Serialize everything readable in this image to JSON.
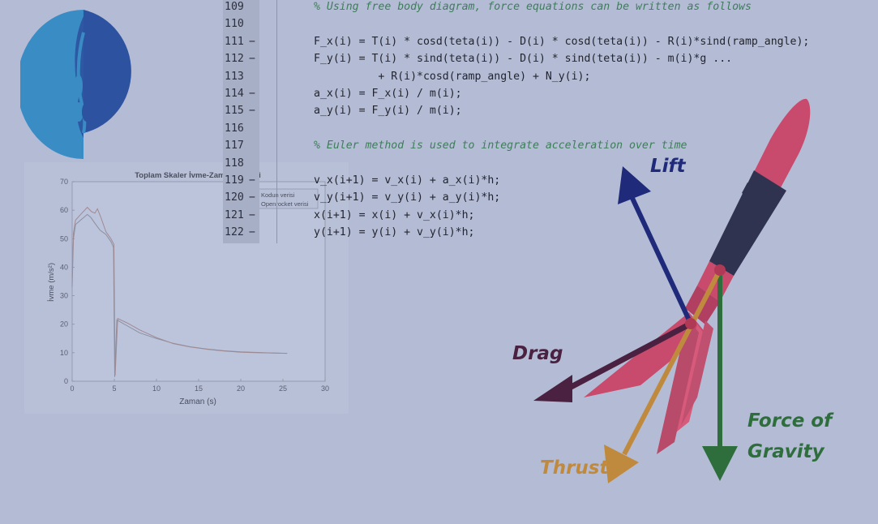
{
  "code": {
    "lines": [
      {
        "num": "109",
        "dash": "",
        "text": "",
        "comment": "% Using free body diagram, force equations can be written as follows"
      },
      {
        "num": "110",
        "dash": "",
        "text": "",
        "comment": ""
      },
      {
        "num": "111",
        "dash": "−",
        "text": "F_x(i) = T(i) * cosd(teta(i)) - D(i) * cosd(teta(i)) - R(i)*sind(ramp_angle);",
        "comment": ""
      },
      {
        "num": "112",
        "dash": "−",
        "text": "F_y(i) = T(i) * sind(teta(i)) - D(i) * sind(teta(i)) - m(i)*g ...",
        "comment": ""
      },
      {
        "num": "113",
        "dash": "",
        "text": "          + R(i)*cosd(ramp_angle) + N_y(i);",
        "comment": ""
      },
      {
        "num": "114",
        "dash": "−",
        "text": "a_x(i) = F_x(i) / m(i);",
        "comment": ""
      },
      {
        "num": "115",
        "dash": "−",
        "text": "a_y(i) = F_y(i) / m(i);",
        "comment": ""
      },
      {
        "num": "116",
        "dash": "",
        "text": "",
        "comment": ""
      },
      {
        "num": "117",
        "dash": "",
        "text": "",
        "comment": "% Euler method is used to integrate acceleration over time"
      },
      {
        "num": "118",
        "dash": "",
        "text": "",
        "comment": ""
      },
      {
        "num": "119",
        "dash": "−",
        "text": "v_x(i+1) = v_x(i) + a_x(i)*h;",
        "comment": ""
      },
      {
        "num": "120",
        "dash": "−",
        "text": "v_y(i+1) = v_y(i) + a_y(i)*h;",
        "comment": ""
      },
      {
        "num": "121",
        "dash": "−",
        "text": "x(i+1) = x(i) + v_x(i)*h;",
        "comment": ""
      },
      {
        "num": "122",
        "dash": "−",
        "text": "y(i+1) = y(i) + v_y(i)*h;",
        "comment": ""
      }
    ]
  },
  "diagram": {
    "labels": {
      "lift": "Lift",
      "drag": "Drag",
      "thrust": "Thrust",
      "gravity_line1": "Force of",
      "gravity_line2": "Gravity"
    },
    "colors": {
      "lift": "#1f2a7a",
      "drag": "#4a2140",
      "thrust": "#c08a3e",
      "gravity": "#2e6e3c",
      "rocket_body": "#c84a6c",
      "rocket_dark": "#2f3350"
    }
  },
  "chart_data": {
    "type": "line",
    "title": "Toplam Skaler İvme-Zaman Grafiği",
    "xlabel": "Zaman (s)",
    "ylabel": "İvme (m/s²)",
    "xlim": [
      0,
      30
    ],
    "ylim": [
      0,
      70
    ],
    "xticks": [
      0,
      5,
      10,
      15,
      20,
      25,
      30
    ],
    "yticks": [
      0,
      10,
      20,
      30,
      40,
      50,
      60,
      70
    ],
    "grid": false,
    "legend_position": "top-right",
    "series": [
      {
        "name": "Kodun verisi",
        "x": [
          0,
          0.15,
          0.4,
          1.0,
          1.8,
          2.2,
          2.8,
          3.3,
          4.0,
          4.6,
          4.9,
          5.05,
          5.3,
          6.5,
          8,
          10,
          12,
          14,
          16,
          18,
          20,
          22,
          24,
          25.5
        ],
        "y": [
          33,
          50,
          55,
          56.5,
          58.5,
          57.5,
          55,
          53,
          51.5,
          49,
          47,
          1.5,
          21.5,
          19.5,
          17,
          15,
          13.3,
          12.1,
          11.3,
          10.7,
          10.3,
          10.1,
          9.9,
          9.8
        ]
      },
      {
        "name": "Openrocket verisi",
        "x": [
          0,
          0.15,
          0.4,
          1.0,
          1.8,
          2.3,
          2.7,
          3.0,
          3.4,
          4.0,
          4.6,
          4.95,
          5.1,
          5.4,
          6.5,
          8,
          10,
          12,
          14,
          16,
          18,
          20,
          22,
          24,
          25.5
        ],
        "y": [
          36,
          52,
          56.5,
          58.5,
          61,
          59.5,
          59,
          60.5,
          57.5,
          52.5,
          50,
          48,
          2,
          22,
          20.5,
          18,
          15.3,
          13.2,
          12,
          11.2,
          10.6,
          10.2,
          10,
          9.9,
          9.8
        ]
      }
    ]
  }
}
